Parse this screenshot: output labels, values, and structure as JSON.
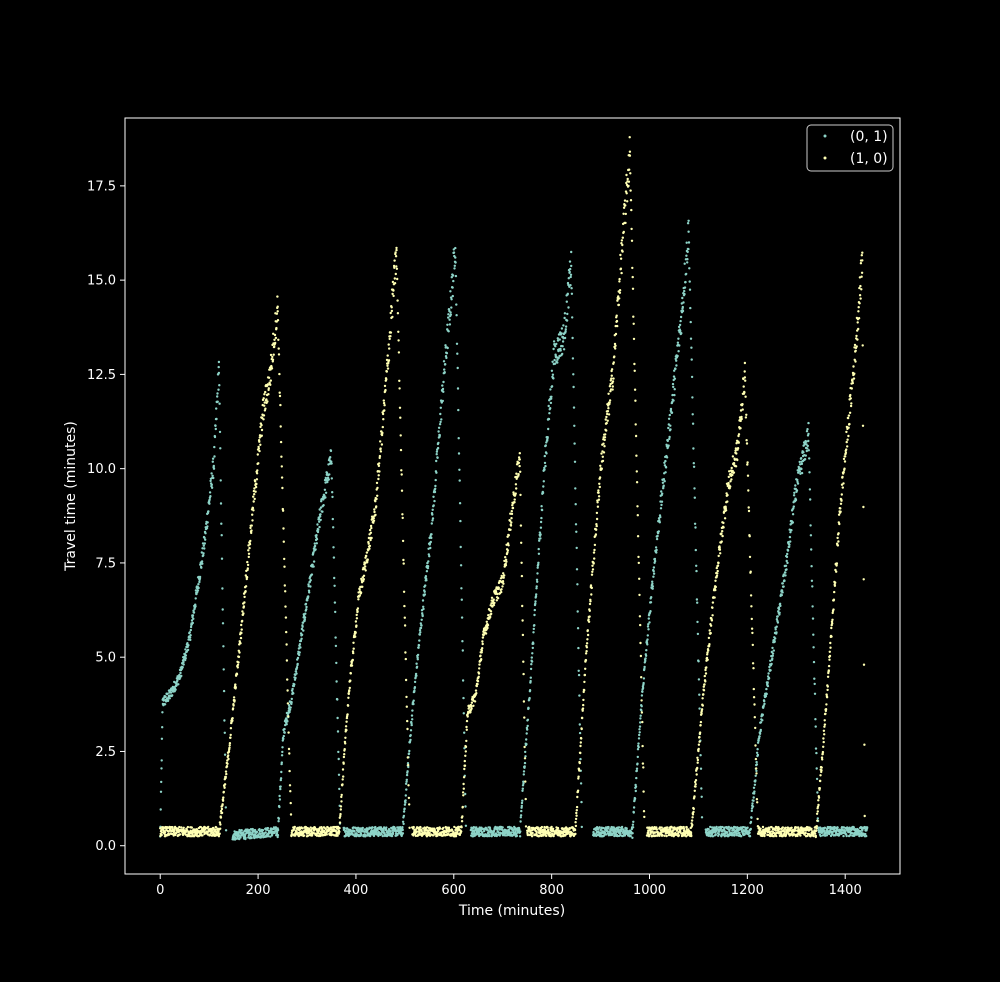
{
  "colors": {
    "background": "#000000",
    "axes": "#ffffff",
    "series_0_1": "#8dd3c7",
    "series_1_0": "#ffffb3"
  },
  "chart_data": {
    "type": "scatter",
    "title": "",
    "xlabel": "Time (minutes)",
    "ylabel": "Travel time (minutes)",
    "xlim": [
      -72,
      1512
    ],
    "ylim": [
      -0.75,
      19.3
    ],
    "xticks": [
      0,
      200,
      400,
      600,
      800,
      1000,
      1200,
      1400
    ],
    "xtick_labels": [
      "0",
      "200",
      "400",
      "600",
      "800",
      "1000",
      "1200",
      "1400"
    ],
    "yticks": [
      0.0,
      2.5,
      5.0,
      7.5,
      10.0,
      12.5,
      15.0,
      17.5
    ],
    "ytick_labels": [
      "0.0",
      "2.5",
      "5.0",
      "7.5",
      "10.0",
      "12.5",
      "15.0",
      "17.5"
    ],
    "grid": false,
    "legend_position": "top-right",
    "series": [
      {
        "name": "(0, 1)",
        "color": "#8dd3c7",
        "cycles": [
          {
            "start": 0,
            "rise": [
              [
                0,
                0.2
              ],
              [
                5,
                3.8
              ],
              [
                20,
                4.0
              ],
              [
                40,
                4.5
              ],
              [
                60,
                5.5
              ],
              [
                90,
                8.0
              ],
              [
                110,
                10.2
              ],
              [
                120,
                12.7
              ]
            ],
            "fall_end": 135,
            "low_end": 148
          },
          {
            "start": 148,
            "rise": [
              [
                148,
                0.2
              ],
              [
                240,
                0.3
              ]
            ],
            "fall_end": 240,
            "low_end": 240
          },
          {
            "start": 240,
            "rise": [
              [
                240,
                0.3
              ],
              [
                252,
                3.0
              ],
              [
                270,
                4.0
              ],
              [
                300,
                6.5
              ],
              [
                330,
                9.0
              ],
              [
                350,
                10.3
              ]
            ],
            "fall_end": 368,
            "low_end": 375
          },
          {
            "start": 375,
            "rise": [
              [
                375,
                0.3
              ],
              [
                495,
                0.3
              ]
            ],
            "fall_end": 495,
            "low_end": 495
          },
          {
            "start": 495,
            "rise": [
              [
                495,
                0.3
              ],
              [
                515,
                3.5
              ],
              [
                530,
                5.5
              ],
              [
                555,
                8.5
              ],
              [
                580,
                12.5
              ],
              [
                598,
                15.0
              ],
              [
                603,
                16.0
              ]
            ],
            "fall_end": 625,
            "low_end": 635
          },
          {
            "start": 635,
            "rise": [
              [
                635,
                0.3
              ],
              [
                735,
                0.3
              ]
            ],
            "fall_end": 735,
            "low_end": 735
          },
          {
            "start": 735,
            "rise": [
              [
                735,
                0.3
              ],
              [
                760,
                5.0
              ],
              [
                785,
                10.0
              ],
              [
                805,
                13.0
              ],
              [
                825,
                13.5
              ],
              [
                840,
                15.4
              ]
            ],
            "fall_end": 862,
            "low_end": 885
          },
          {
            "start": 885,
            "rise": [
              [
                885,
                0.3
              ],
              [
                965,
                0.3
              ]
            ],
            "fall_end": 965,
            "low_end": 965
          },
          {
            "start": 965,
            "rise": [
              [
                965,
                0.3
              ],
              [
                985,
                4.0
              ],
              [
                1010,
                7.5
              ],
              [
                1040,
                11.0
              ],
              [
                1065,
                14.0
              ],
              [
                1080,
                16.3
              ]
            ],
            "fall_end": 1108,
            "low_end": 1115
          },
          {
            "start": 1115,
            "rise": [
              [
                1115,
                0.3
              ],
              [
                1205,
                0.3
              ]
            ],
            "fall_end": 1205,
            "low_end": 1205
          },
          {
            "start": 1205,
            "rise": [
              [
                1205,
                0.3
              ],
              [
                1225,
                3.0
              ],
              [
                1250,
                5.0
              ],
              [
                1280,
                7.5
              ],
              [
                1300,
                9.5
              ],
              [
                1325,
                10.9
              ]
            ],
            "fall_end": 1345,
            "low_end": 1345
          },
          {
            "start": 1345,
            "rise": [
              [
                1345,
                0.3
              ],
              [
                1445,
                0.3
              ]
            ],
            "fall_end": 1445,
            "low_end": 1445
          }
        ]
      },
      {
        "name": "(1, 0)",
        "color": "#ffffb3",
        "cycles": [
          {
            "start": 0,
            "rise": [
              [
                0,
                0.3
              ],
              [
                120,
                0.3
              ]
            ],
            "fall_end": 120,
            "low_end": 120
          },
          {
            "start": 120,
            "rise": [
              [
                120,
                0.3
              ],
              [
                140,
                2.5
              ],
              [
                160,
                5.0
              ],
              [
                190,
                9.0
              ],
              [
                210,
                11.5
              ],
              [
                225,
                12.5
              ],
              [
                240,
                14.3
              ]
            ],
            "fall_end": 268,
            "low_end": 268
          },
          {
            "start": 268,
            "rise": [
              [
                268,
                0.3
              ],
              [
                365,
                0.3
              ]
            ],
            "fall_end": 365,
            "low_end": 365
          },
          {
            "start": 365,
            "rise": [
              [
                365,
                0.3
              ],
              [
                385,
                4.0
              ],
              [
                405,
                6.5
              ],
              [
                420,
                7.5
              ],
              [
                440,
                9.0
              ],
              [
                460,
                12.0
              ],
              [
                475,
                14.5
              ],
              [
                483,
                15.7
              ]
            ],
            "fall_end": 510,
            "low_end": 515
          },
          {
            "start": 515,
            "rise": [
              [
                515,
                0.3
              ],
              [
                615,
                0.3
              ]
            ],
            "fall_end": 615,
            "low_end": 615
          },
          {
            "start": 615,
            "rise": [
              [
                615,
                0.3
              ],
              [
                628,
                3.5
              ],
              [
                645,
                4.0
              ],
              [
                660,
                5.5
              ],
              [
                680,
                6.5
              ],
              [
                700,
                7.0
              ],
              [
                720,
                9.0
              ],
              [
                735,
                10.3
              ]
            ],
            "fall_end": 748,
            "low_end": 750
          },
          {
            "start": 750,
            "rise": [
              [
                750,
                0.3
              ],
              [
                848,
                0.3
              ]
            ],
            "fall_end": 848,
            "low_end": 848
          },
          {
            "start": 848,
            "rise": [
              [
                848,
                0.3
              ],
              [
                870,
                5.0
              ],
              [
                900,
                10.0
              ],
              [
                925,
                12.5
              ],
              [
                945,
                16.0
              ],
              [
                960,
                18.4
              ]
            ],
            "fall_end": 990,
            "low_end": 995
          },
          {
            "start": 995,
            "rise": [
              [
                995,
                0.3
              ],
              [
                1085,
                0.3
              ]
            ],
            "fall_end": 1085,
            "low_end": 1085
          },
          {
            "start": 1085,
            "rise": [
              [
                1085,
                0.3
              ],
              [
                1110,
                4.0
              ],
              [
                1135,
                7.0
              ],
              [
                1160,
                9.5
              ],
              [
                1180,
                10.5
              ],
              [
                1195,
                12.5
              ]
            ],
            "fall_end": 1222,
            "low_end": 1222
          },
          {
            "start": 1222,
            "rise": [
              [
                1222,
                0.3
              ],
              [
                1340,
                0.3
              ]
            ],
            "fall_end": 1340,
            "low_end": 1340
          },
          {
            "start": 1340,
            "rise": [
              [
                1340,
                0.3
              ],
              [
                1360,
                3.5
              ],
              [
                1390,
                9.0
              ],
              [
                1420,
                13.0
              ],
              [
                1435,
                15.5
              ]
            ],
            "fall_end": 1440,
            "low_end": 1440
          }
        ]
      }
    ]
  }
}
